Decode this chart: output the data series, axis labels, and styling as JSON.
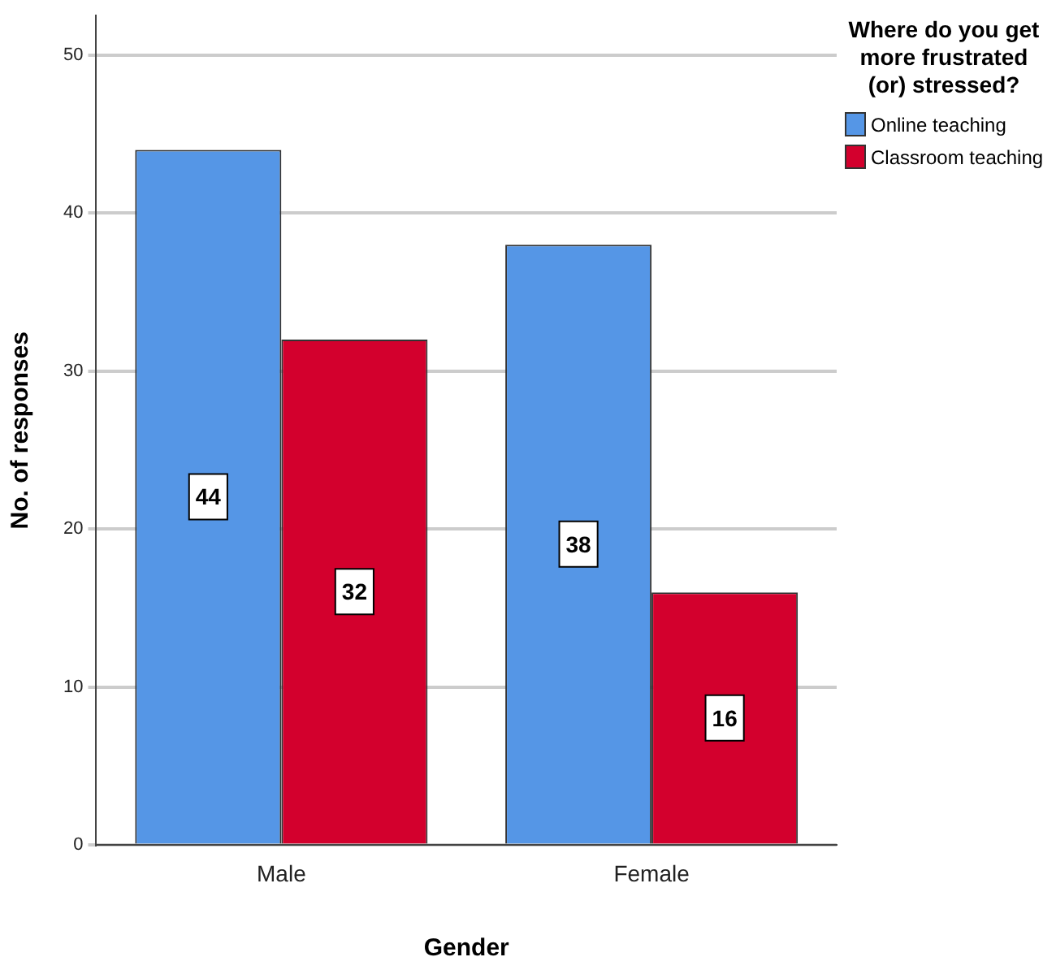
{
  "chart_data": {
    "type": "bar",
    "xlabel": "Gender",
    "ylabel": "No. of responses",
    "legend_title": "Where do you get more frustrated (or) stressed?",
    "categories": [
      "Male",
      "Female"
    ],
    "series": [
      {
        "name": "Online teaching",
        "color": "#5596e6",
        "values": [
          44,
          38
        ]
      },
      {
        "name": "Classroom teaching",
        "color": "#d3002d",
        "values": [
          32,
          16
        ]
      }
    ],
    "ylim": [
      0,
      52.5
    ],
    "yticks": [
      0,
      10,
      20,
      30,
      40,
      50
    ],
    "grid": "y",
    "legend": "top right",
    "data_labels": true
  }
}
